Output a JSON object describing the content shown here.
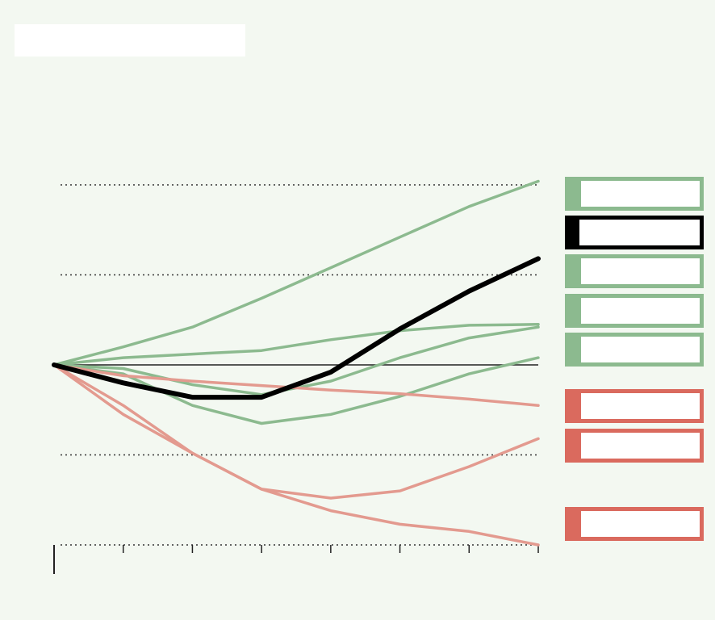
{
  "header": {
    "title": "",
    "subtitle": ""
  },
  "colors": {
    "background": "#f3f8f1",
    "green": "#8cba8f",
    "red": "#da6a5e",
    "red_line": "#e39a8f",
    "highlight": "#000000",
    "grid": "#333333"
  },
  "footer": {
    "source": ""
  },
  "chart_data": {
    "type": "line",
    "title": "",
    "xlabel": "",
    "ylabel": "",
    "x": [
      0,
      1,
      2,
      3,
      4,
      5,
      6,
      7
    ],
    "xlim": [
      0,
      7
    ],
    "ylim": [
      -2,
      2
    ],
    "yticks": [
      -2,
      -1,
      0,
      1,
      2
    ],
    "ytick_labels": [
      "",
      "",
      "",
      "",
      ""
    ],
    "xtick_labels": [
      "",
      "",
      "",
      "",
      "",
      "",
      "",
      ""
    ],
    "grid": true,
    "zero_line": true,
    "series": [
      {
        "group": "green",
        "highlight": false,
        "label": "",
        "values": [
          0,
          0.2,
          0.42,
          0.74,
          1.08,
          1.42,
          1.76,
          2.04
        ]
      },
      {
        "group": "black",
        "highlight": true,
        "label": "",
        "values": [
          0,
          -0.2,
          -0.36,
          -0.36,
          -0.08,
          0.4,
          0.82,
          1.18
        ]
      },
      {
        "group": "green",
        "highlight": false,
        "label": "",
        "values": [
          0,
          0.08,
          0.12,
          0.16,
          0.28,
          0.38,
          0.44,
          0.45
        ]
      },
      {
        "group": "green",
        "highlight": false,
        "label": "",
        "values": [
          0,
          -0.04,
          -0.22,
          -0.33,
          -0.18,
          0.08,
          0.3,
          0.42
        ]
      },
      {
        "group": "green",
        "highlight": false,
        "label": "",
        "values": [
          0,
          -0.1,
          -0.45,
          -0.65,
          -0.55,
          -0.35,
          -0.1,
          0.08
        ]
      },
      {
        "group": "red",
        "highlight": false,
        "label": "",
        "values": [
          0,
          -0.12,
          -0.18,
          -0.23,
          -0.28,
          -0.32,
          -0.38,
          -0.45
        ]
      },
      {
        "group": "red",
        "highlight": false,
        "label": "",
        "values": [
          0,
          -0.55,
          -0.98,
          -1.38,
          -1.48,
          -1.4,
          -1.13,
          -0.82
        ]
      },
      {
        "group": "red",
        "highlight": false,
        "label": "",
        "values": [
          0,
          -0.45,
          -0.98,
          -1.38,
          -1.62,
          -1.77,
          -1.85,
          -2.0
        ]
      }
    ]
  }
}
